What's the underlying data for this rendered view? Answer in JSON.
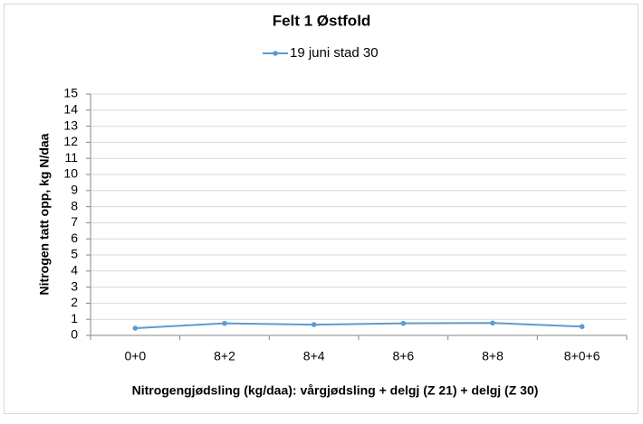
{
  "chart_data": {
    "type": "line",
    "title": "Felt 1 Østfold",
    "x_label": "Nitrogengjødsling (kg/daa): vårgjødsling + delgj (Z 21) + delgj (Z 30)",
    "y_label": "Nitrogen tatt opp, kg N/daa",
    "categories": [
      "0+0",
      "8+2",
      "8+4",
      "8+6",
      "8+8",
      "8+0+6"
    ],
    "series": [
      {
        "name": "19 juni stad 30",
        "color": "#5b9bd5",
        "values": [
          0.45,
          0.75,
          0.67,
          0.75,
          0.77,
          0.55
        ]
      }
    ],
    "ylim": [
      0,
      15
    ],
    "yticks": [
      0,
      1,
      2,
      3,
      4,
      5,
      6,
      7,
      8,
      9,
      10,
      11,
      12,
      13,
      14,
      15
    ],
    "grid": true,
    "legend": "top"
  }
}
